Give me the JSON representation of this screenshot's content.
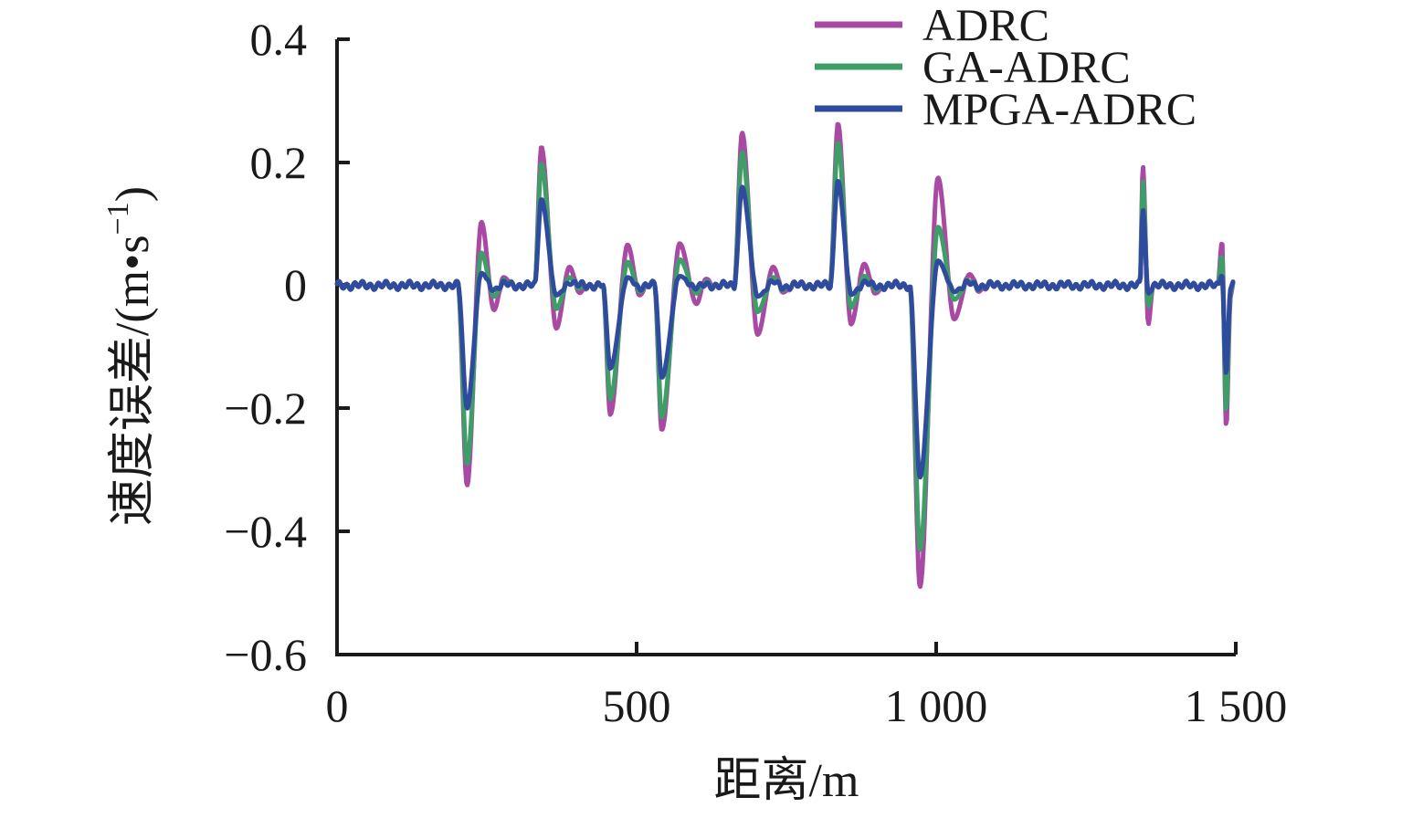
{
  "chart_data": {
    "type": "line",
    "title": "",
    "xlabel": "距离/m",
    "ylabel": "速度误差/(m•s−1)",
    "ylabel_parts": {
      "prefix": "速度误差/(m•s",
      "sup": "−1",
      "suffix": ")"
    },
    "xlim": [
      0,
      1500
    ],
    "ylim": [
      -0.6,
      0.4
    ],
    "grid": false,
    "legend_position": "top-right",
    "axis_color": "#1a1a1a",
    "baseline_noise_amplitude": 0.006,
    "x_ticks": [
      {
        "value": 0,
        "label": "0"
      },
      {
        "value": 500,
        "label": "500"
      },
      {
        "value": 1000,
        "label": "1 000"
      },
      {
        "value": 1500,
        "label": "1 500"
      }
    ],
    "y_ticks": [
      {
        "value": 0.4,
        "label": "0.4"
      },
      {
        "value": 0.2,
        "label": "0.2"
      },
      {
        "value": 0,
        "label": "0"
      },
      {
        "value": -0.2,
        "label": "−0.2"
      },
      {
        "value": -0.4,
        "label": "−0.4"
      },
      {
        "value": -0.6,
        "label": "−0.6"
      }
    ],
    "series": [
      {
        "name": "ADRC",
        "color": "#a849a3",
        "keypoints": [
          [
            0,
            0
          ],
          [
            60,
            0
          ],
          [
            120,
            0
          ],
          [
            180,
            0
          ],
          [
            202,
            0
          ],
          [
            217,
            -0.325
          ],
          [
            241,
            0.103
          ],
          [
            262,
            -0.04
          ],
          [
            278,
            0.013
          ],
          [
            295,
            0
          ],
          [
            315,
            0
          ],
          [
            330,
            0
          ],
          [
            341,
            0.225
          ],
          [
            366,
            -0.07
          ],
          [
            388,
            0.03
          ],
          [
            405,
            -0.012
          ],
          [
            420,
            0
          ],
          [
            444,
            0
          ],
          [
            456,
            -0.21
          ],
          [
            485,
            0.066
          ],
          [
            505,
            -0.016
          ],
          [
            518,
            0
          ],
          [
            530,
            0
          ],
          [
            542,
            -0.235
          ],
          [
            572,
            0.068
          ],
          [
            600,
            -0.03
          ],
          [
            615,
            0.01
          ],
          [
            632,
            0
          ],
          [
            663,
            0
          ],
          [
            676,
            0.248
          ],
          [
            702,
            -0.08
          ],
          [
            728,
            0.03
          ],
          [
            745,
            -0.011
          ],
          [
            762,
            0
          ],
          [
            800,
            0
          ],
          [
            823,
            0
          ],
          [
            836,
            0.263
          ],
          [
            858,
            -0.063
          ],
          [
            880,
            0.035
          ],
          [
            898,
            -0.013
          ],
          [
            915,
            0
          ],
          [
            956,
            0
          ],
          [
            973,
            -0.49
          ],
          [
            1003,
            0.175
          ],
          [
            1030,
            -0.055
          ],
          [
            1056,
            0.018
          ],
          [
            1072,
            -0.008
          ],
          [
            1090,
            0
          ],
          [
            1150,
            0
          ],
          [
            1250,
            0
          ],
          [
            1330,
            0
          ],
          [
            1340,
            0
          ],
          [
            1345,
            0.194
          ],
          [
            1354,
            -0.063
          ],
          [
            1362,
            0
          ],
          [
            1400,
            0
          ],
          [
            1440,
            0
          ],
          [
            1470,
            0
          ],
          [
            1477,
            0.071
          ],
          [
            1484,
            -0.229
          ],
          [
            1491,
            -0.02
          ],
          [
            1496,
            0
          ]
        ]
      },
      {
        "name": "GA-ADRC",
        "color": "#3f9d68",
        "keypoints": [
          [
            0,
            0
          ],
          [
            60,
            0
          ],
          [
            120,
            0
          ],
          [
            180,
            0
          ],
          [
            202,
            0
          ],
          [
            217,
            -0.29
          ],
          [
            241,
            0.053
          ],
          [
            262,
            -0.018
          ],
          [
            278,
            0.006
          ],
          [
            295,
            0
          ],
          [
            315,
            0
          ],
          [
            330,
            0
          ],
          [
            341,
            0.198
          ],
          [
            366,
            -0.038
          ],
          [
            388,
            0.013
          ],
          [
            405,
            -0.005
          ],
          [
            420,
            0
          ],
          [
            444,
            0
          ],
          [
            456,
            -0.185
          ],
          [
            485,
            0.038
          ],
          [
            505,
            -0.009
          ],
          [
            518,
            0
          ],
          [
            530,
            0
          ],
          [
            542,
            -0.215
          ],
          [
            572,
            0.042
          ],
          [
            600,
            -0.013
          ],
          [
            615,
            0.004
          ],
          [
            632,
            0
          ],
          [
            663,
            0
          ],
          [
            676,
            0.216
          ],
          [
            702,
            -0.043
          ],
          [
            728,
            0.013
          ],
          [
            745,
            -0.005
          ],
          [
            762,
            0
          ],
          [
            800,
            0
          ],
          [
            823,
            0
          ],
          [
            836,
            0.232
          ],
          [
            858,
            -0.036
          ],
          [
            880,
            0.015
          ],
          [
            898,
            -0.006
          ],
          [
            915,
            0
          ],
          [
            956,
            0
          ],
          [
            973,
            -0.43
          ],
          [
            1003,
            0.095
          ],
          [
            1030,
            -0.023
          ],
          [
            1056,
            0.007
          ],
          [
            1072,
            -0.003
          ],
          [
            1090,
            0
          ],
          [
            1150,
            0
          ],
          [
            1250,
            0
          ],
          [
            1330,
            0
          ],
          [
            1340,
            0
          ],
          [
            1345,
            0.17
          ],
          [
            1354,
            -0.034
          ],
          [
            1362,
            0
          ],
          [
            1400,
            0
          ],
          [
            1440,
            0
          ],
          [
            1470,
            0
          ],
          [
            1477,
            0.048
          ],
          [
            1484,
            -0.204
          ],
          [
            1491,
            -0.012
          ],
          [
            1496,
            0
          ]
        ]
      },
      {
        "name": "MPGA-ADRC",
        "color": "#2f4b9e",
        "keypoints": [
          [
            0,
            0
          ],
          [
            60,
            0
          ],
          [
            120,
            0
          ],
          [
            180,
            0
          ],
          [
            202,
            0
          ],
          [
            217,
            -0.2
          ],
          [
            241,
            0.02
          ],
          [
            262,
            -0.006
          ],
          [
            278,
            0.002
          ],
          [
            295,
            0
          ],
          [
            315,
            0
          ],
          [
            330,
            0
          ],
          [
            341,
            0.14
          ],
          [
            366,
            -0.016
          ],
          [
            388,
            0.005
          ],
          [
            405,
            0
          ],
          [
            420,
            0
          ],
          [
            444,
            0
          ],
          [
            456,
            -0.135
          ],
          [
            485,
            0.013
          ],
          [
            505,
            -0.003
          ],
          [
            518,
            0
          ],
          [
            530,
            0
          ],
          [
            542,
            -0.15
          ],
          [
            572,
            0.015
          ],
          [
            600,
            -0.004
          ],
          [
            615,
            0.001
          ],
          [
            632,
            0
          ],
          [
            663,
            0
          ],
          [
            676,
            0.16
          ],
          [
            702,
            -0.018
          ],
          [
            728,
            0.005
          ],
          [
            745,
            -0.002
          ],
          [
            762,
            0
          ],
          [
            800,
            0
          ],
          [
            823,
            0
          ],
          [
            836,
            0.17
          ],
          [
            858,
            -0.015
          ],
          [
            880,
            0.005
          ],
          [
            898,
            -0.002
          ],
          [
            915,
            0
          ],
          [
            956,
            0
          ],
          [
            973,
            -0.312
          ],
          [
            1003,
            0.04
          ],
          [
            1030,
            -0.009
          ],
          [
            1056,
            0.003
          ],
          [
            1072,
            -0.001
          ],
          [
            1090,
            0
          ],
          [
            1150,
            0
          ],
          [
            1250,
            0
          ],
          [
            1330,
            0
          ],
          [
            1340,
            0
          ],
          [
            1345,
            0.123
          ],
          [
            1354,
            -0.013
          ],
          [
            1362,
            0
          ],
          [
            1400,
            0
          ],
          [
            1440,
            0
          ],
          [
            1470,
            0
          ],
          [
            1477,
            0.016
          ],
          [
            1484,
            -0.144
          ],
          [
            1491,
            -0.006
          ],
          [
            1496,
            0
          ]
        ]
      }
    ]
  }
}
